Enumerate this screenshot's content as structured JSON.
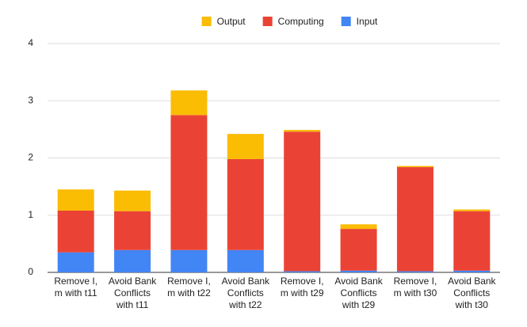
{
  "chart_data": {
    "type": "stacked_bar",
    "categories": [
      "Remove I, m with t11",
      "Avoid Bank Conflicts with t11",
      "Remove I, m with t22",
      "Avoid Bank Conflicts with t22",
      "Remove I, m with t29",
      "Avoid Bank Conflicts with t29",
      "Remove I, m with t30",
      "Avoid Bank Conflicts with t30"
    ],
    "series": [
      {
        "name": "Input",
        "color": "#4285f4",
        "values": [
          0.35,
          0.39,
          0.39,
          0.39,
          0.02,
          0.03,
          0.02,
          0.03
        ]
      },
      {
        "name": "Computing",
        "color": "#ea4335",
        "values": [
          0.73,
          0.68,
          2.36,
          1.59,
          2.44,
          0.73,
          1.82,
          1.04
        ]
      },
      {
        "name": "Output",
        "color": "#fbbc04",
        "values": [
          0.37,
          0.36,
          0.43,
          0.44,
          0.03,
          0.08,
          0.02,
          0.03
        ]
      }
    ],
    "ylim": [
      0,
      4
    ],
    "yticks": [
      0,
      1,
      2,
      3,
      4
    ],
    "grid": true,
    "legend": "top"
  }
}
